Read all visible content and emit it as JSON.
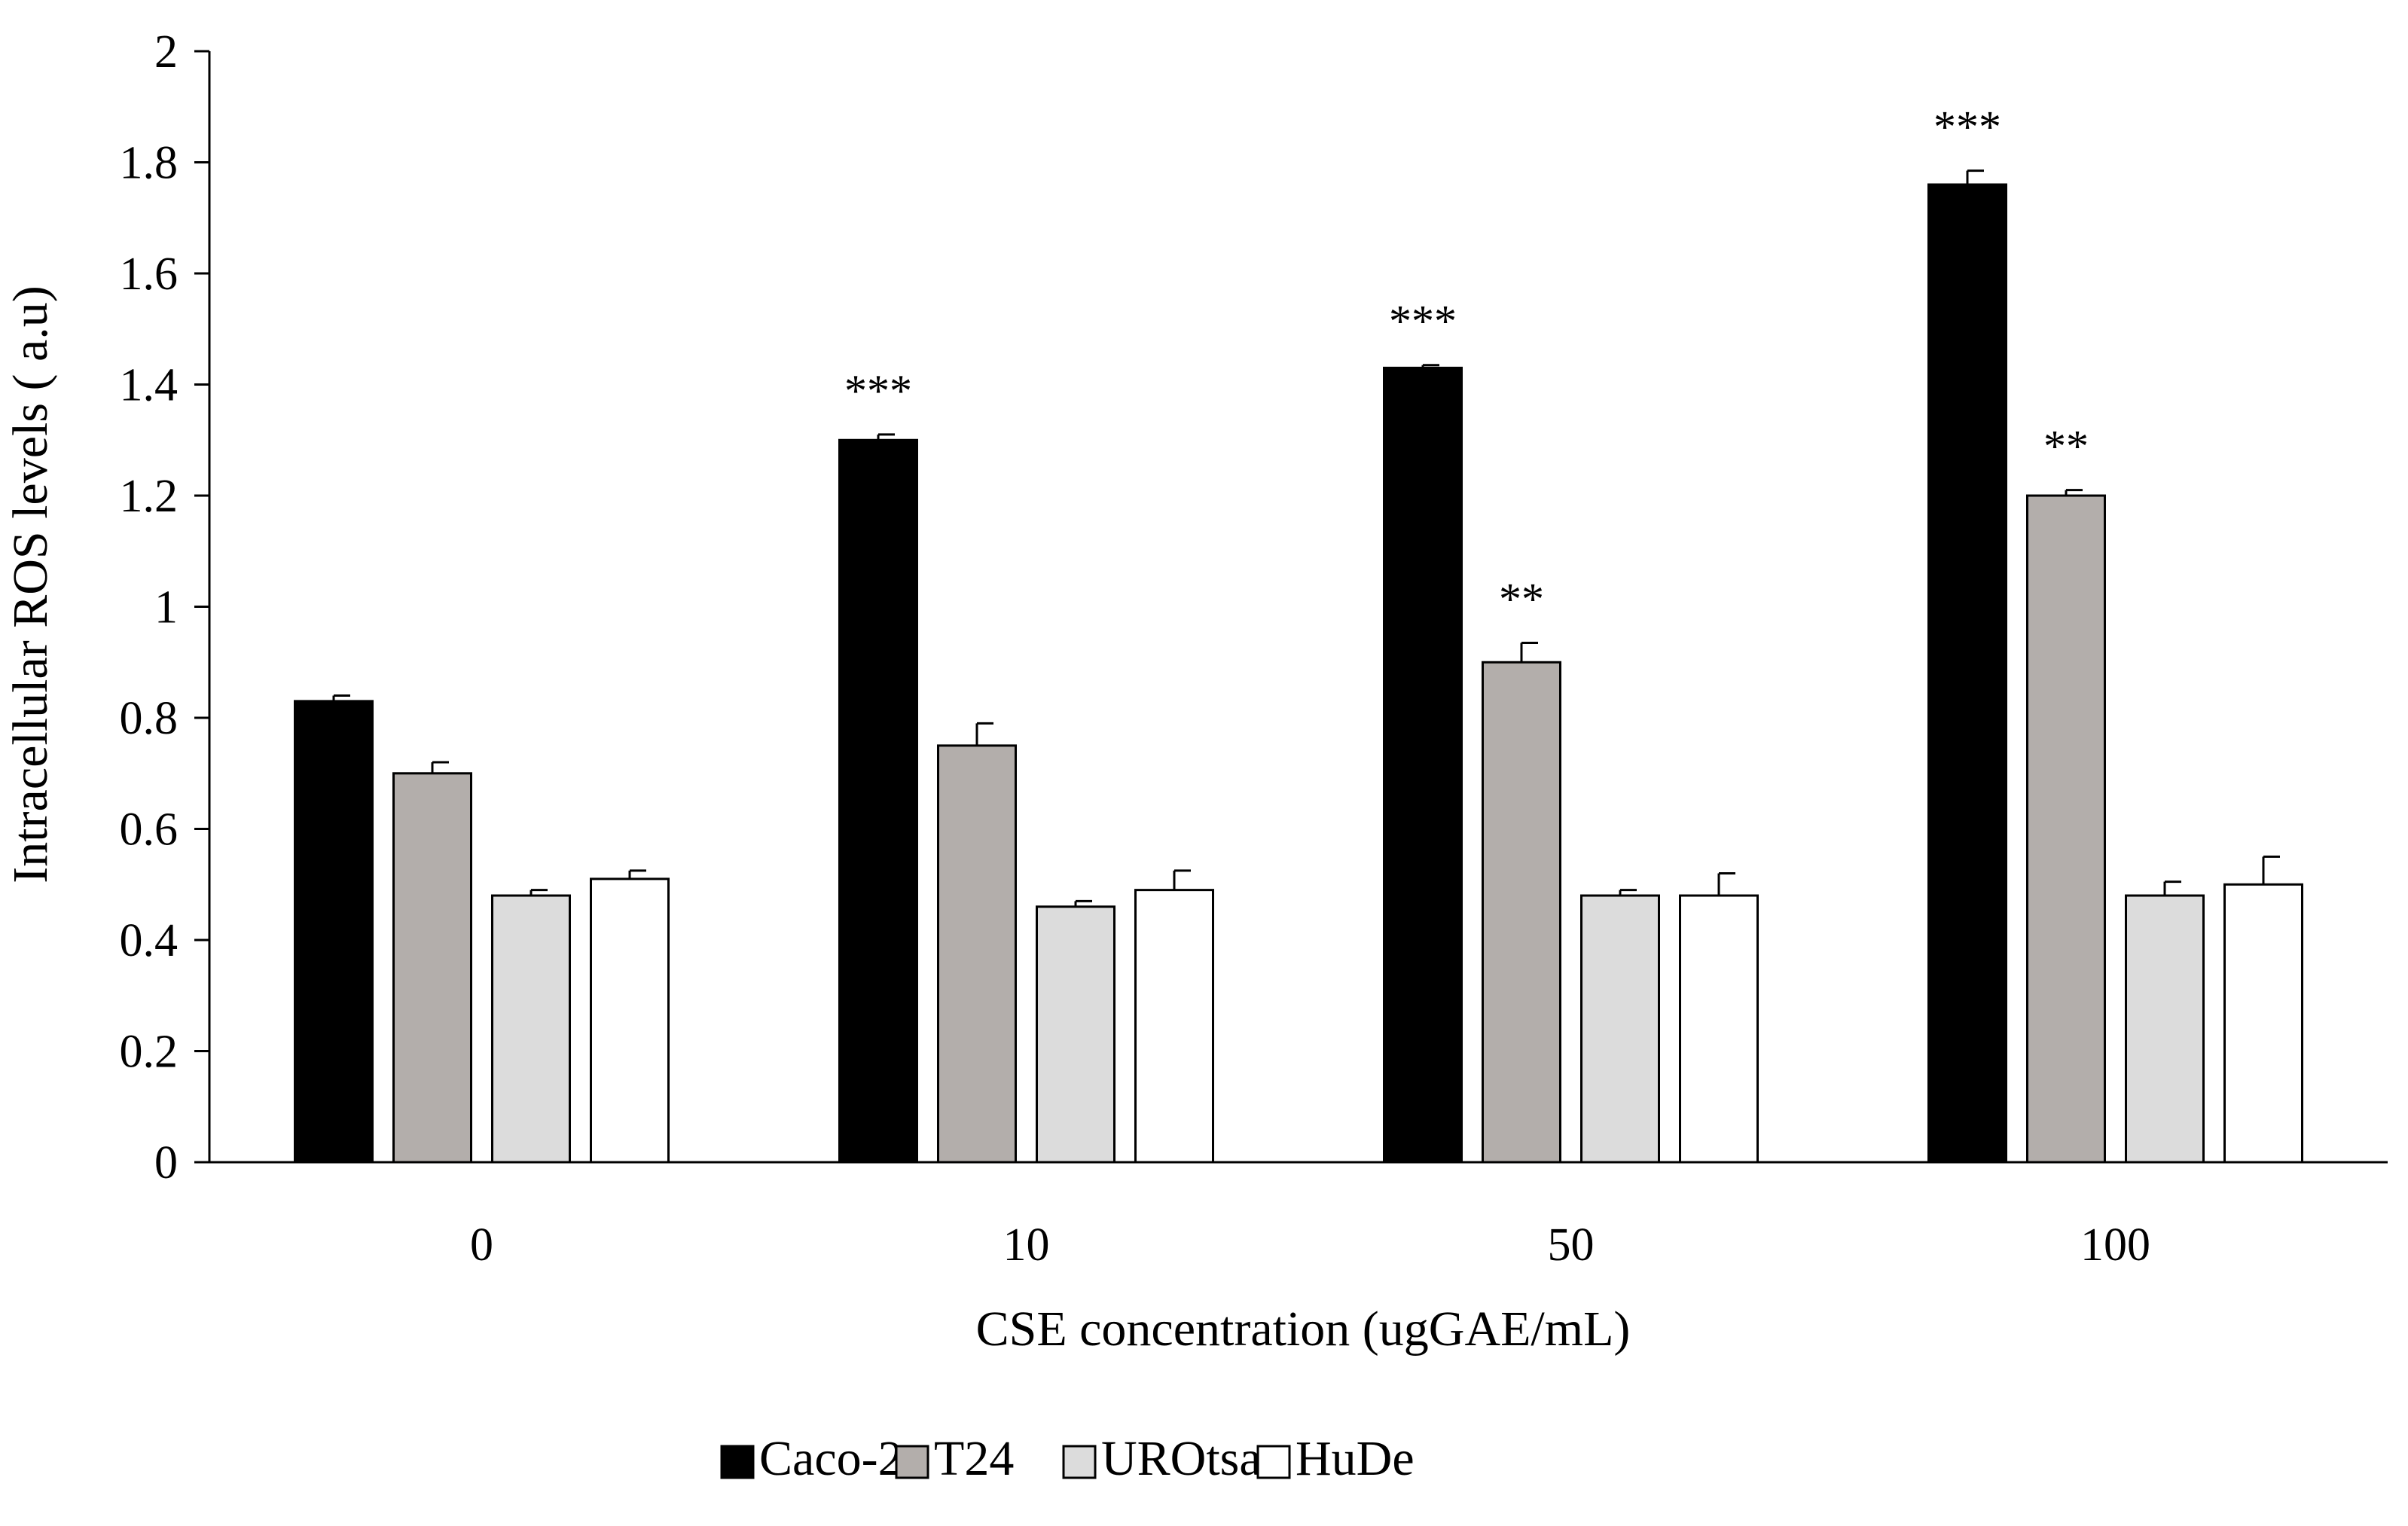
{
  "chart_data": {
    "type": "bar",
    "title": "",
    "xlabel": "CSE concentration  (ugGAE/mL)",
    "ylabel": "Intracellular  ROS levels ( a.u)",
    "categories": [
      "0",
      "10",
      "50",
      "100"
    ],
    "ylim": [
      0,
      2
    ],
    "yticks": [
      0,
      0.2,
      0.4,
      0.6,
      0.8,
      1,
      1.2,
      1.4,
      1.6,
      1.8,
      2
    ],
    "ytick_labels": [
      "0",
      "0.2",
      "0.4",
      "0.6",
      "0.8",
      "1",
      "1.2",
      "1.4",
      "1.6",
      "1.8",
      "2"
    ],
    "grid": false,
    "legend_position": "bottom-center",
    "series": [
      {
        "name": "Caco-2",
        "color": "#000000",
        "values": [
          0.83,
          1.3,
          1.43,
          1.76
        ],
        "errors": [
          0.01,
          0.01,
          0.005,
          0.025
        ],
        "significance": [
          "",
          "***",
          "***",
          "***"
        ]
      },
      {
        "name": "T24",
        "color": "#b3aeab",
        "values": [
          0.7,
          0.75,
          0.9,
          1.2
        ],
        "errors": [
          0.02,
          0.04,
          0.035,
          0.01
        ],
        "significance": [
          "",
          "",
          "**",
          "**"
        ]
      },
      {
        "name": "UROtsa",
        "color": "#dcdcdc",
        "values": [
          0.48,
          0.46,
          0.48,
          0.48
        ],
        "errors": [
          0.01,
          0.01,
          0.01,
          0.025
        ],
        "significance": [
          "",
          "",
          "",
          ""
        ]
      },
      {
        "name": "HuDe",
        "color": "#ffffff",
        "values": [
          0.51,
          0.49,
          0.48,
          0.5
        ],
        "errors": [
          0.015,
          0.035,
          0.04,
          0.05
        ],
        "significance": [
          "",
          "",
          "",
          ""
        ]
      }
    ]
  }
}
